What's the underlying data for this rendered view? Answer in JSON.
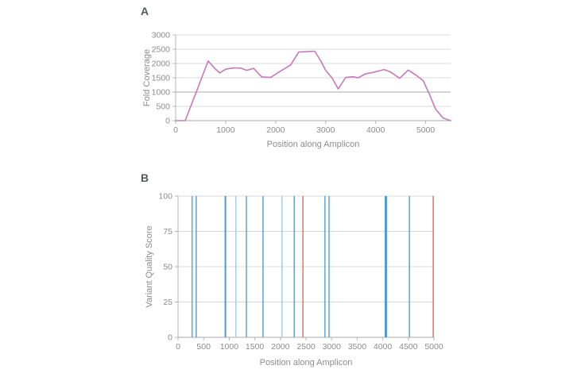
{
  "figure": {
    "panel_a": {
      "label": "A"
    },
    "panel_b": {
      "label": "B"
    }
  },
  "colors": {
    "coverage_line": "#c878ba",
    "variant_blue": "#5ba3d9",
    "variant_light_blue": "#a5cdea",
    "variant_red": "#e0726a",
    "gridline": "#d8d8d8",
    "gridline_emphasized": "#a8a8a8",
    "axis_line": "#b4b4b4",
    "tick_text": "#8c8c8c"
  },
  "chart_data": [
    {
      "panel": "A",
      "type": "line",
      "title": "",
      "xlabel": "Position along Amplicon",
      "ylabel": "Fold Coverage",
      "xlim": [
        0,
        5500
      ],
      "ylim": [
        0,
        3000
      ],
      "xticks": [
        0,
        1000,
        2000,
        3000,
        4000,
        5000
      ],
      "yticks": [
        0,
        500,
        1000,
        1500,
        2000,
        2500,
        3000
      ],
      "grid": "horizontal",
      "emphasized_gridline": 1000,
      "legend": "none",
      "series": [
        {
          "name": "Fold Coverage",
          "color": "#c878ba",
          "x": [
            0,
            190,
            400,
            650,
            780,
            880,
            1000,
            1150,
            1300,
            1420,
            1560,
            1720,
            1900,
            2100,
            2300,
            2460,
            2780,
            2900,
            3000,
            3130,
            3250,
            3400,
            3550,
            3650,
            3800,
            3950,
            4170,
            4300,
            4480,
            4650,
            4800,
            4950,
            5080,
            5200,
            5350,
            5500
          ],
          "y": [
            0,
            0,
            950,
            2090,
            1830,
            1670,
            1800,
            1845,
            1840,
            1760,
            1830,
            1530,
            1510,
            1740,
            1950,
            2400,
            2430,
            2100,
            1760,
            1490,
            1110,
            1510,
            1535,
            1500,
            1640,
            1690,
            1790,
            1700,
            1480,
            1770,
            1600,
            1400,
            900,
            400,
            90,
            0
          ]
        }
      ]
    },
    {
      "panel": "B",
      "type": "bar",
      "title": "",
      "xlabel": "Position along Amplicon",
      "ylabel": "Variant Quality Score",
      "xlim": [
        0,
        5000
      ],
      "ylim": [
        0,
        100
      ],
      "xticks": [
        0,
        500,
        1000,
        1500,
        2000,
        2500,
        3000,
        3500,
        4000,
        4500,
        5000
      ],
      "yticks": [
        0,
        25,
        50,
        75,
        100
      ],
      "grid": "horizontal",
      "legend": "none",
      "bars": [
        {
          "x": 275,
          "value": 100,
          "color": "#5ba3d9",
          "width": 1.5
        },
        {
          "x": 355,
          "value": 100,
          "color": "#5ba3d9",
          "width": 1.5
        },
        {
          "x": 925,
          "value": 100,
          "color": "#4d9ad4",
          "width": 2
        },
        {
          "x": 1130,
          "value": 100,
          "color": "#a5cdea",
          "width": 1.5
        },
        {
          "x": 1335,
          "value": 100,
          "color": "#5ba3d9",
          "width": 1.5
        },
        {
          "x": 1660,
          "value": 100,
          "color": "#5ba3d9",
          "width": 1.5
        },
        {
          "x": 2030,
          "value": 100,
          "color": "#a5cdea",
          "width": 1.5
        },
        {
          "x": 2270,
          "value": 100,
          "color": "#5ba3d9",
          "width": 1.5
        },
        {
          "x": 2440,
          "value": 100,
          "color": "#e0726a",
          "width": 1.5
        },
        {
          "x": 2870,
          "value": 100,
          "color": "#5ba3d9",
          "width": 1.5
        },
        {
          "x": 2950,
          "value": 100,
          "color": "#5ba3d9",
          "width": 1.5
        },
        {
          "x": 4060,
          "value": 100,
          "color": "#4d9ad4",
          "width": 3
        },
        {
          "x": 4520,
          "value": 100,
          "color": "#5ba3d9",
          "width": 1.5
        },
        {
          "x": 4985,
          "value": 100,
          "color": "#e0726a",
          "width": 1.5
        }
      ]
    }
  ]
}
